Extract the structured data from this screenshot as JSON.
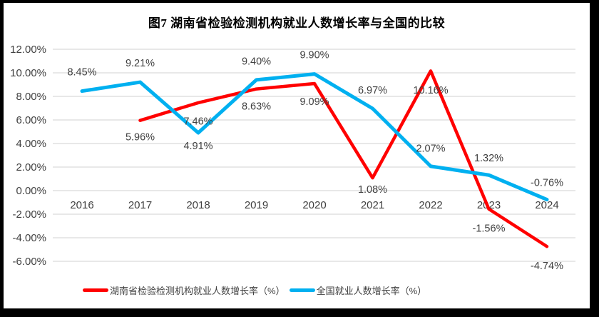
{
  "chart_data": {
    "type": "line",
    "title": "图7 湖南省检验检测机构就业人数增长率与全国的比较",
    "categories": [
      "2016",
      "2017",
      "2018",
      "2019",
      "2020",
      "2021",
      "2022",
      "2023",
      "2024"
    ],
    "series": [
      {
        "key": "hunan",
        "name": "湖南省检验检测机构就业人数增长率（%）",
        "color": "#FF0000",
        "stroke_width": 4.5,
        "values": [
          null,
          5.96,
          7.46,
          8.63,
          9.09,
          1.08,
          10.16,
          -1.56,
          -4.74
        ],
        "label_dy": [
          null,
          24,
          27,
          25,
          26,
          17,
          28,
          28,
          28
        ]
      },
      {
        "key": "national",
        "name": "全国就业人数增长率（%）",
        "color": "#00B0F0",
        "stroke_width": 5,
        "values": [
          8.45,
          9.21,
          4.91,
          9.4,
          9.9,
          6.97,
          2.07,
          1.32,
          -0.76
        ],
        "label_dy": [
          -26,
          -26,
          19,
          -25,
          -26,
          -25,
          -24,
          -23,
          -23
        ]
      }
    ],
    "ylim": [
      -6,
      12
    ],
    "ytick_step": 2,
    "ytick_format": "percent-2dp",
    "ytick_labels": [
      "12.00%",
      "10.00%",
      "8.00%",
      "6.00%",
      "4.00%",
      "2.00%",
      "0.00%",
      "-2.00%",
      "-4.00%",
      "-6.00%"
    ],
    "grid": true,
    "legend_position": "bottom",
    "xlabel": "",
    "ylabel": ""
  },
  "colors": {
    "grid_line": "#D9D9D9",
    "axis_text": "#404040",
    "data_label_text": "#404040",
    "title_text": "#000000",
    "frame_border": "#000000",
    "background": "#FFFFFF"
  }
}
